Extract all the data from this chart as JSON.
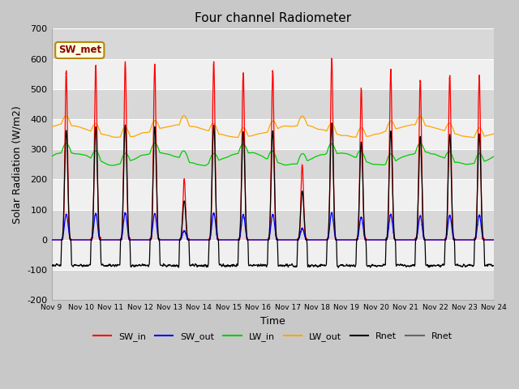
{
  "title": "Four channel Radiometer",
  "xlabel": "Time",
  "ylabel": "Solar Radiation (W/m2)",
  "ylim": [
    -200,
    700
  ],
  "xlim": [
    0,
    15
  ],
  "fig_bg": "#c8c8c8",
  "plot_bg": "#e8e8e8",
  "band_color_dark": "#d8d8d8",
  "band_color_light": "#f0f0f0",
  "colors": {
    "SW_in": "red",
    "SW_out": "blue",
    "LW_in": "#00cc00",
    "LW_out": "orange",
    "Rnet": "black",
    "Rnet2": "#666666"
  },
  "xtick_labels": [
    "Nov 9",
    "Nov 10",
    "Nov 11",
    "Nov 12",
    "Nov 13",
    "Nov 14",
    "Nov 15",
    "Nov 16",
    "Nov 17",
    "Nov 18",
    "Nov 19",
    "Nov 20",
    "Nov 21",
    "Nov 22",
    "Nov 23",
    "Nov 24"
  ],
  "ytick_values": [
    -200,
    -100,
    0,
    100,
    200,
    300,
    400,
    500,
    600,
    700
  ],
  "annotation_text": "SW_met",
  "legend_entries": [
    "SW_in",
    "SW_out",
    "LW_in",
    "LW_out",
    "Rnet",
    "Rnet"
  ],
  "legend_colors": [
    "red",
    "blue",
    "#00cc00",
    "orange",
    "black",
    "#666666"
  ]
}
